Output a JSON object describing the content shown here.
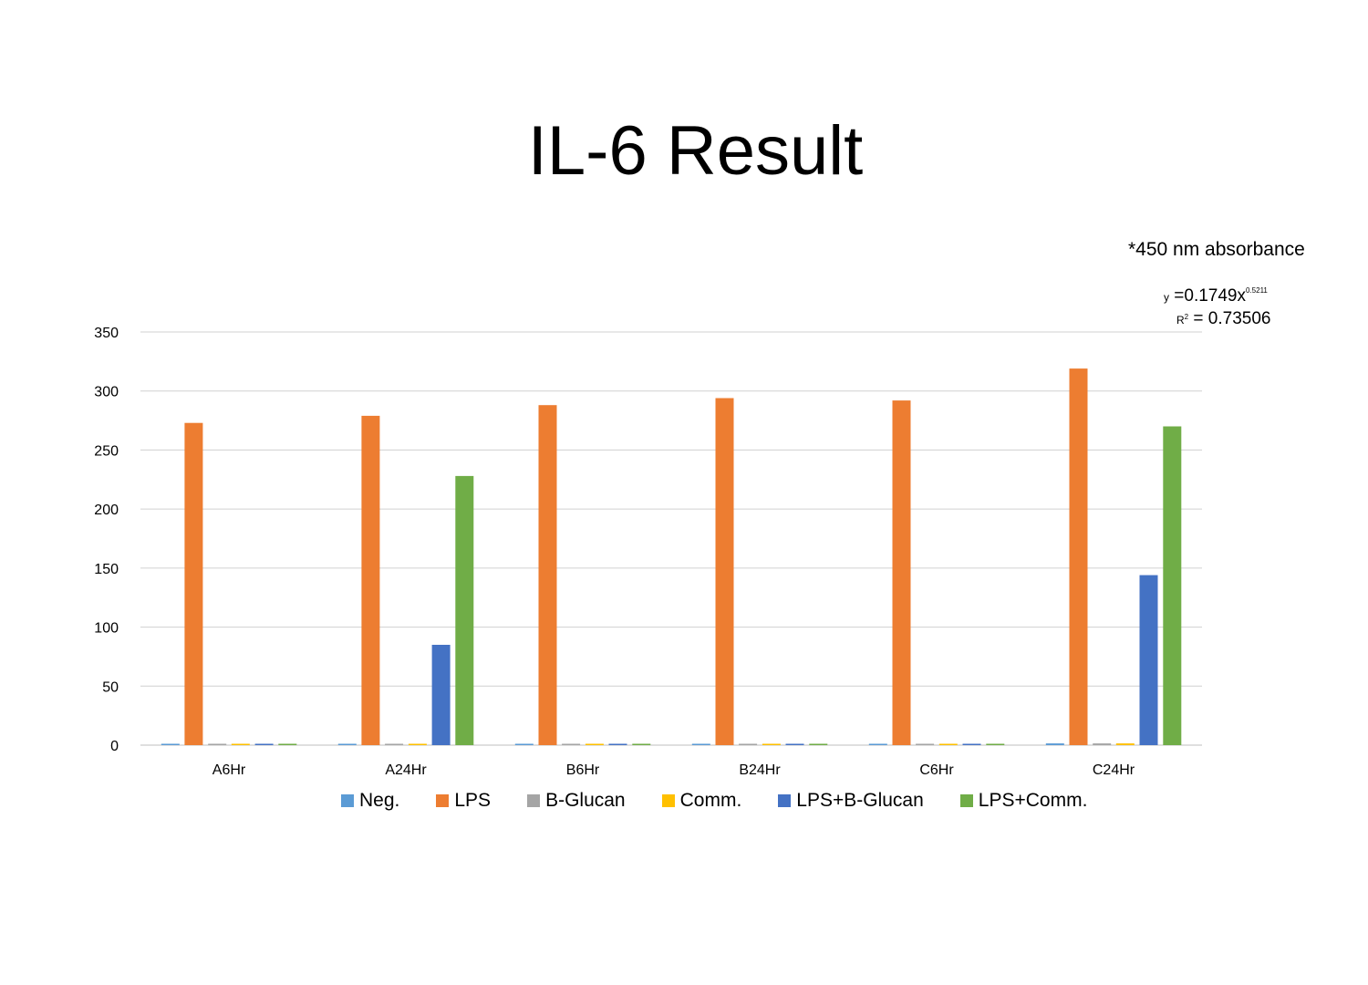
{
  "chart_data": {
    "type": "bar",
    "title": "IL-6 Result",
    "note": "*450 nm absorbance",
    "trendline": {
      "y_prefix": "y",
      "eq_body": "=0.1749x",
      "exponent": "0.5211",
      "r_label": "R",
      "r_exp": "2",
      "r_value": "= 0.73506"
    },
    "categories": [
      "A6Hr",
      "A24Hr",
      "B6Hr",
      "B24Hr",
      "C6Hr",
      "C24Hr"
    ],
    "ylim": [
      0,
      350
    ],
    "yticks": [
      "0",
      "50",
      "100",
      "150",
      "200",
      "250",
      "300",
      "350"
    ],
    "grid": true,
    "legend_position": "bottom",
    "series": [
      {
        "name": "Neg.",
        "color": "#5B9BD5",
        "values": [
          1,
          1,
          1,
          1,
          1,
          1.5
        ]
      },
      {
        "name": "LPS",
        "color": "#ED7D31",
        "values": [
          273,
          279,
          288,
          294,
          292,
          319
        ]
      },
      {
        "name": "B-Glucan",
        "color": "#A5A5A5",
        "values": [
          1,
          1,
          1,
          1,
          1,
          1.5
        ]
      },
      {
        "name": "Comm.",
        "color": "#FFC000",
        "values": [
          1,
          1,
          1,
          1,
          1,
          1.5
        ]
      },
      {
        "name": "LPS+B-Glucan",
        "color": "#4472C4",
        "values": [
          1,
          85,
          1,
          1,
          1,
          144
        ]
      },
      {
        "name": "LPS+Comm.",
        "color": "#70AD47",
        "values": [
          1,
          228,
          1,
          1,
          1,
          270
        ]
      }
    ]
  }
}
